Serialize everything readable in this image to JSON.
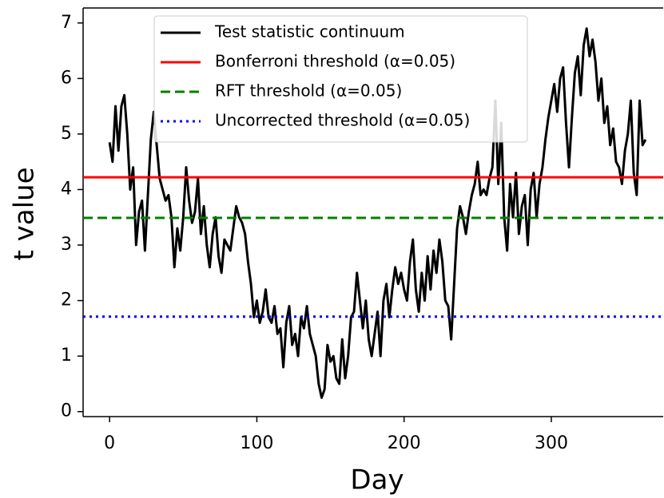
{
  "chart_data": {
    "type": "line",
    "xlabel": "Day",
    "ylabel": "t value",
    "x": [
      0,
      2,
      4,
      6,
      8,
      10,
      12,
      14,
      16,
      18,
      20,
      22,
      24,
      26,
      28,
      30,
      32,
      34,
      36,
      38,
      40,
      42,
      44,
      46,
      48,
      50,
      52,
      54,
      56,
      58,
      60,
      62,
      64,
      66,
      68,
      70,
      72,
      74,
      76,
      78,
      80,
      82,
      84,
      86,
      88,
      90,
      92,
      94,
      96,
      98,
      100,
      102,
      104,
      106,
      108,
      110,
      112,
      114,
      116,
      118,
      120,
      122,
      124,
      126,
      128,
      130,
      132,
      134,
      136,
      138,
      140,
      142,
      144,
      146,
      148,
      150,
      152,
      154,
      156,
      158,
      160,
      162,
      164,
      166,
      168,
      170,
      172,
      174,
      176,
      178,
      180,
      182,
      184,
      186,
      188,
      190,
      192,
      194,
      196,
      198,
      200,
      202,
      204,
      206,
      208,
      210,
      212,
      214,
      216,
      218,
      220,
      222,
      224,
      226,
      228,
      230,
      232,
      234,
      236,
      238,
      240,
      242,
      244,
      246,
      248,
      250,
      252,
      254,
      256,
      258,
      260,
      262,
      264,
      266,
      268,
      270,
      272,
      274,
      276,
      278,
      280,
      282,
      284,
      286,
      288,
      290,
      292,
      294,
      296,
      298,
      300,
      302,
      304,
      306,
      308,
      310,
      312,
      314,
      316,
      318,
      320,
      322,
      324,
      326,
      328,
      330,
      332,
      334,
      336,
      338,
      340,
      342,
      344,
      346,
      348,
      350,
      352,
      354,
      356,
      358,
      360,
      362,
      364
    ],
    "series": [
      {
        "name": "Test statistic continuum",
        "color": "#000000",
        "values": [
          4.85,
          4.5,
          5.5,
          4.7,
          5.5,
          5.7,
          5.0,
          4.0,
          4.4,
          3.0,
          3.6,
          3.8,
          2.9,
          3.9,
          4.9,
          5.4,
          4.8,
          4.2,
          4.0,
          3.8,
          3.9,
          3.5,
          2.6,
          3.3,
          2.9,
          3.5,
          4.4,
          3.8,
          3.4,
          3.6,
          4.2,
          3.2,
          3.7,
          3.0,
          2.6,
          3.2,
          3.5,
          2.8,
          2.5,
          3.1,
          3.0,
          2.9,
          3.3,
          3.7,
          3.5,
          3.4,
          3.2,
          2.7,
          2.3,
          1.7,
          2.0,
          1.6,
          1.8,
          2.2,
          1.7,
          1.6,
          1.9,
          1.4,
          1.5,
          0.8,
          1.6,
          1.9,
          1.2,
          1.4,
          1.0,
          1.7,
          1.5,
          1.9,
          1.4,
          1.2,
          1.0,
          0.5,
          0.25,
          0.4,
          1.2,
          0.9,
          1.0,
          0.6,
          0.5,
          1.3,
          0.6,
          1.0,
          1.7,
          1.8,
          2.5,
          2.0,
          1.5,
          2.0,
          1.3,
          1.0,
          1.4,
          1.8,
          1.0,
          2.0,
          2.3,
          1.7,
          2.2,
          2.6,
          2.3,
          2.5,
          2.2,
          2.0,
          2.7,
          3.1,
          2.2,
          1.8,
          2.5,
          2.0,
          2.8,
          2.2,
          2.9,
          2.5,
          3.1,
          2.7,
          2.0,
          1.9,
          1.3,
          2.3,
          3.3,
          3.7,
          3.5,
          3.2,
          3.6,
          3.9,
          4.1,
          4.5,
          3.9,
          4.0,
          3.9,
          4.2,
          4.4,
          5.6,
          4.1,
          5.2,
          3.5,
          2.9,
          4.1,
          3.5,
          4.3,
          3.2,
          3.7,
          3.9,
          3.0,
          4.0,
          4.3,
          3.5,
          4.1,
          4.4,
          4.9,
          5.3,
          5.6,
          5.9,
          5.4,
          6.0,
          6.2,
          5.2,
          4.4,
          5.3,
          6.1,
          6.4,
          5.7,
          6.6,
          6.9,
          6.4,
          6.7,
          6.3,
          5.6,
          6.0,
          5.2,
          5.5,
          4.8,
          5.1,
          4.5,
          4.4,
          4.1,
          4.7,
          5.0,
          5.6,
          4.3,
          3.9,
          5.6,
          4.8,
          4.9
        ]
      }
    ],
    "thresholds": [
      {
        "name": "Bonferroni threshold (α=0.05)",
        "color": "#ff0000",
        "value": 4.22,
        "dash": "none"
      },
      {
        "name": "RFT threshold (α=0.05)",
        "color": "#008000",
        "value": 3.49,
        "dash": "12,6"
      },
      {
        "name": "Uncorrected threshold (α=0.05)",
        "color": "#0000ff",
        "value": 1.71,
        "dash": "3,5"
      }
    ],
    "xlim": [
      -18,
      376
    ],
    "ylim": [
      -0.09,
      7.27
    ],
    "xticks": [
      0,
      100,
      200,
      300
    ],
    "yticks": [
      0,
      1,
      2,
      3,
      4,
      5,
      6,
      7
    ],
    "grid": false,
    "legend": "upper center"
  }
}
